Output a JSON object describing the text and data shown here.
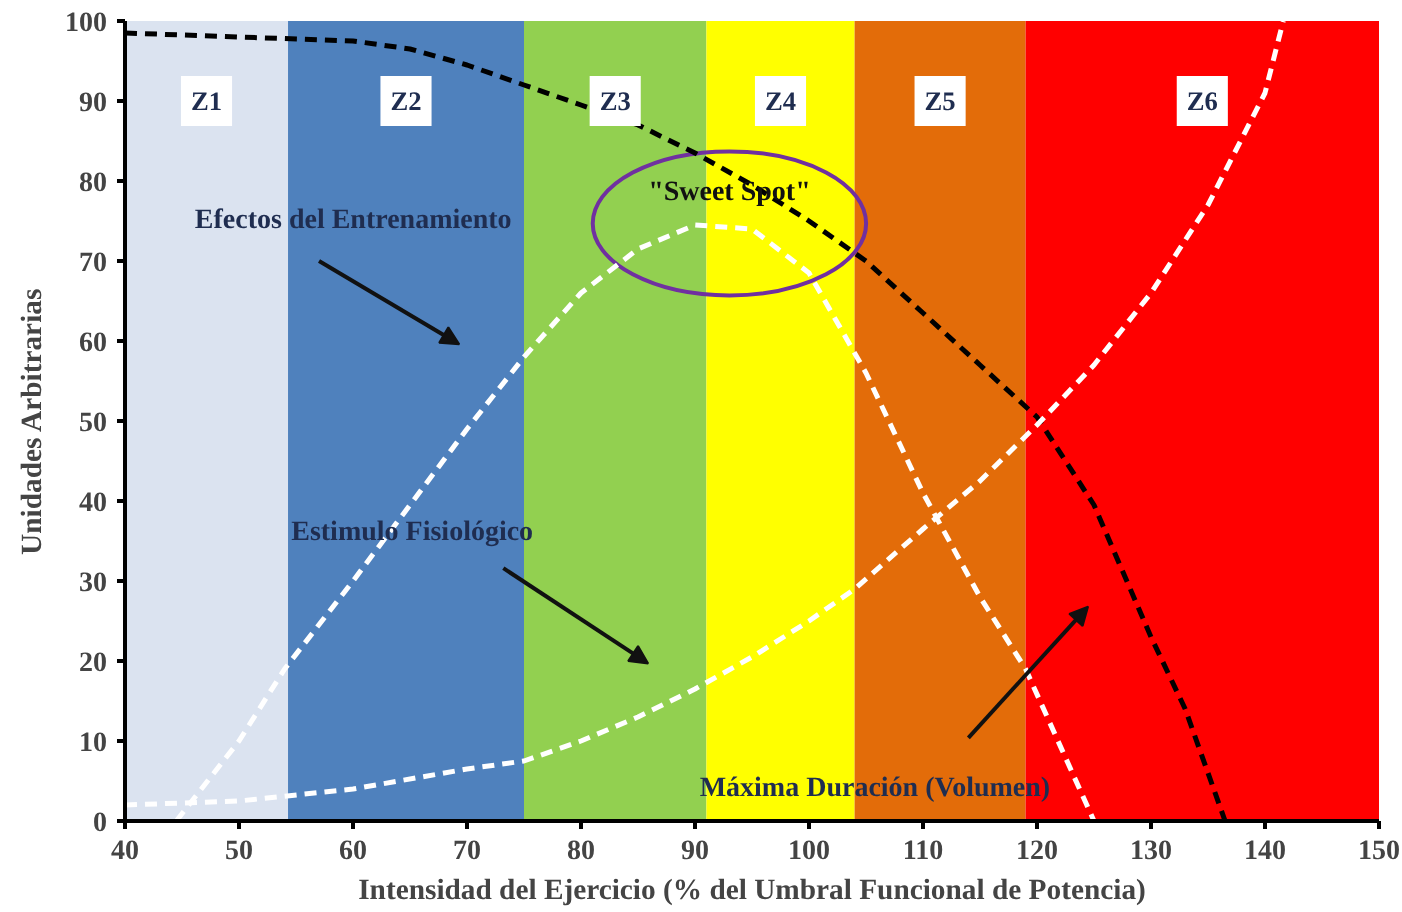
{
  "chart_data": {
    "type": "line",
    "xlabel": "Intensidad del Ejercicio (% del Umbral Funcional de Potencia)",
    "ylabel": "Unidades Arbitrarias",
    "xlim": [
      40,
      150
    ],
    "xticks": [
      40,
      50,
      60,
      70,
      80,
      90,
      100,
      110,
      120,
      130,
      140,
      150
    ],
    "ylim": [
      0,
      100
    ],
    "yticks": [
      0,
      10,
      20,
      30,
      40,
      50,
      60,
      70,
      80,
      90,
      100
    ],
    "grid": false,
    "line_style": "dashed",
    "marker": "none",
    "series": [
      {
        "color": "#000000",
        "x": [
          40,
          50,
          60,
          65,
          70,
          75,
          80,
          85,
          90,
          95,
          100,
          105,
          110,
          115,
          120,
          125,
          130,
          133,
          136.5
        ],
        "values": [
          98.5,
          98,
          97.5,
          96.5,
          94.5,
          92,
          89.5,
          87,
          83.5,
          79.5,
          75,
          70,
          63.5,
          57,
          50.5,
          39.5,
          23,
          14,
          0
        ]
      },
      {
        "color": "#ffffff",
        "x": [
          40,
          50,
          60,
          70,
          75,
          80,
          85,
          90,
          95,
          100,
          104,
          110,
          115,
          120,
          125,
          130,
          135,
          140,
          141.6
        ],
        "values": [
          2,
          2.5,
          4,
          6.5,
          7.5,
          10,
          13,
          16.5,
          20.5,
          25,
          29,
          36.5,
          42.5,
          49.5,
          57,
          66,
          77,
          91,
          100
        ]
      },
      {
        "color": "#ffffff",
        "x": [
          44.5,
          50,
          54,
          60,
          65,
          70,
          75,
          80,
          85,
          90,
          95,
          100,
          105,
          110,
          115,
          119,
          125
        ],
        "values": [
          0,
          10,
          19,
          30,
          39.5,
          49,
          58,
          66,
          71.5,
          74.5,
          74,
          68.5,
          56,
          41,
          28,
          19,
          0
        ]
      }
    ],
    "bands": [
      {
        "axis": "x",
        "from": 40,
        "to": 54.3,
        "label": "Z1",
        "color": "#dbe3f0"
      },
      {
        "axis": "x",
        "from": 54.3,
        "to": 75,
        "label": "Z2",
        "color": "#4f81bd"
      },
      {
        "axis": "x",
        "from": 75,
        "to": 91,
        "label": "Z3",
        "color": "#92d050"
      },
      {
        "axis": "x",
        "from": 91,
        "to": 104,
        "label": "Z4",
        "color": "#ffff00"
      },
      {
        "axis": "x",
        "from": 104,
        "to": 119,
        "label": "Z5",
        "color": "#e36c09"
      },
      {
        "axis": "x",
        "from": 119,
        "to": 150,
        "label": "Z6",
        "color": "#ff0000"
      }
    ],
    "annotations": [
      "Efectos del Entrenamiento",
      "Estimulo Fisiológico",
      "Máxima Duración (Volumen)",
      "\"Sweet Spot\""
    ]
  }
}
